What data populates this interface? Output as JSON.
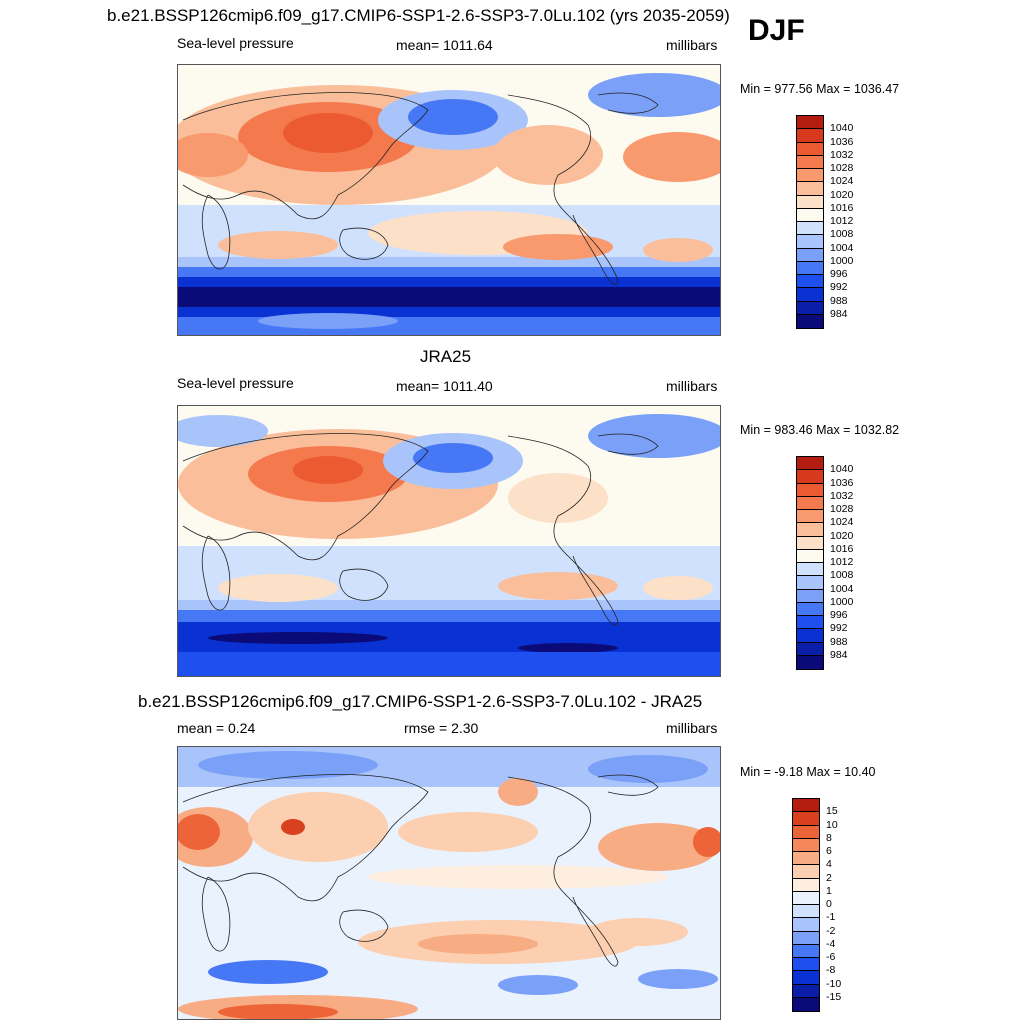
{
  "season": "DJF",
  "colors": {
    "pressure": [
      "#0a0a78",
      "#0a1eaa",
      "#0a32d2",
      "#1e50f0",
      "#4678f5",
      "#7aa0f8",
      "#a8c4fb",
      "#cfe1fc",
      "#fdfaf0",
      "#fde0c8",
      "#fbbe9a",
      "#f89a6e",
      "#f47a4e",
      "#ec5a32",
      "#d8381e",
      "#b41c10",
      "#8c0c08"
    ],
    "diff": [
      "#0a0a78",
      "#0a1eaa",
      "#0a32d2",
      "#1e50f0",
      "#4678f5",
      "#7aa0f8",
      "#a8c4fb",
      "#cfe1fc",
      "#eaf2fe",
      "#fdeee0",
      "#fbcfb0",
      "#f8ac84",
      "#f4875c",
      "#ec6438",
      "#d8401e",
      "#b41c10",
      "#8c0c08"
    ]
  },
  "panels": [
    {
      "title": "b.e21.BSSP126cmip6.f09_g17.CMIP6-SSP1-2.6-SSP3-7.0Lu.102 (yrs 2035-2059)",
      "left_label": "Sea-level pressure",
      "center_label": "mean= 1011.64",
      "right_label": "millibars",
      "minmax": "Min = 977.56 Max = 1036.47",
      "colorbar_labels": [
        "1040",
        "1036",
        "1032",
        "1028",
        "1024",
        "1020",
        "1016",
        "1012",
        "1008",
        "1004",
        "1000",
        "996",
        "992",
        "988",
        "984"
      ]
    },
    {
      "title": "JRA25",
      "left_label": "Sea-level pressure",
      "center_label": "mean= 1011.40",
      "right_label": "millibars",
      "minmax": "Min = 983.46 Max = 1032.82",
      "colorbar_labels": [
        "1040",
        "1036",
        "1032",
        "1028",
        "1024",
        "1020",
        "1016",
        "1012",
        "1008",
        "1004",
        "1000",
        "996",
        "992",
        "988",
        "984"
      ]
    },
    {
      "title": "b.e21.BSSP126cmip6.f09_g17.CMIP6-SSP1-2.6-SSP3-7.0Lu.102 - JRA25",
      "left_label": "mean =   0.24",
      "center_label": "rmse =   2.30",
      "right_label": "millibars",
      "minmax": "Min =  -9.18 Max =  10.40",
      "colorbar_labels": [
        "15",
        "10",
        "8",
        "6",
        "4",
        "2",
        "1",
        "0",
        "-1",
        "-2",
        "-4",
        "-6",
        "-8",
        "-10",
        "-15"
      ]
    }
  ]
}
